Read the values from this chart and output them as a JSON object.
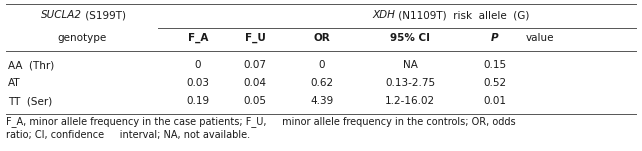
{
  "title_left_italic": "SUCLA2",
  "title_left_normal": " (S199T)",
  "title_right_italic": "XDH",
  "title_right_normal": " (N1109T)  risk  allele  (G)",
  "subtitle_left": "genotype",
  "col_headers": [
    "F_A",
    "F_U",
    "OR",
    "95% CI",
    "P",
    "value"
  ],
  "col_bold": [
    true,
    true,
    true,
    true,
    true,
    false
  ],
  "col_italic": [
    false,
    false,
    false,
    false,
    true,
    false
  ],
  "rows": [
    [
      "AA  (Thr)",
      "0",
      "0.07",
      "0",
      "NA",
      "0.15",
      ""
    ],
    [
      "AT",
      "0.03",
      "0.04",
      "0.62",
      "0.13-2.75",
      "0.52",
      ""
    ],
    [
      "TT  (Ser)",
      "0.19",
      "0.05",
      "4.39",
      "1.2-16.02",
      "0.01",
      ""
    ]
  ],
  "footnote_line1": "F_A, minor allele frequency in the case patients; F_U,     minor allele frequency in the controls; OR, odds",
  "footnote_line2": "ratio; CI, confidence     interval; NA, not available.",
  "bg_color": "#ffffff",
  "text_color": "#1a1a1a",
  "font_size": 7.5,
  "line_color": "#555555"
}
